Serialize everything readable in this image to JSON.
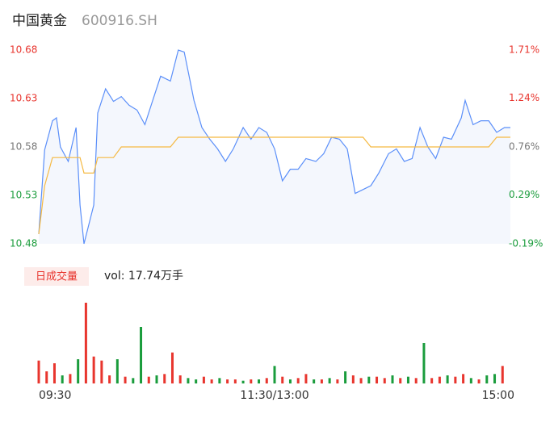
{
  "chart_data": [
    {
      "type": "line",
      "title": "中国黄金",
      "subtitle": "600916.SH",
      "x": [
        0,
        3,
        7,
        9,
        11,
        15,
        19,
        21,
        23,
        28,
        30,
        34,
        38,
        42,
        46,
        50,
        54,
        58,
        62,
        67,
        71,
        74,
        77,
        79,
        83,
        87,
        91,
        95,
        99,
        104,
        108,
        112,
        116,
        120,
        124,
        128,
        132,
        136,
        141,
        145,
        149,
        153,
        157,
        161,
        165,
        169,
        173,
        178,
        182,
        186,
        190,
        194,
        198,
        202,
        206,
        210,
        215,
        217,
        221,
        225,
        229,
        233,
        237,
        240
      ],
      "xlim": [
        0,
        240
      ],
      "series": [
        {
          "name": "price",
          "color": "#5b8ff9",
          "values": [
            10.49,
            10.577,
            10.607,
            10.61,
            10.58,
            10.565,
            10.6,
            10.52,
            10.48,
            10.52,
            10.615,
            10.64,
            10.627,
            10.632,
            10.623,
            10.618,
            10.603,
            10.628,
            10.653,
            10.648,
            10.68,
            10.678,
            10.648,
            10.628,
            10.6,
            10.588,
            10.578,
            10.565,
            10.578,
            10.6,
            10.588,
            10.6,
            10.595,
            10.578,
            10.545,
            10.557,
            10.557,
            10.568,
            10.565,
            10.573,
            10.59,
            10.588,
            10.578,
            10.532,
            10.536,
            10.54,
            10.553,
            10.573,
            10.578,
            10.565,
            10.568,
            10.6,
            10.58,
            10.568,
            10.59,
            10.588,
            10.61,
            10.628,
            10.603,
            10.607,
            10.607,
            10.595,
            10.6,
            10.6
          ]
        },
        {
          "name": "average",
          "color": "#f5b942",
          "values": [
            10.49,
            10.54,
            10.569,
            10.569,
            10.569,
            10.569,
            10.569,
            10.569,
            10.553,
            10.553,
            10.569,
            10.569,
            10.569,
            10.58,
            10.58,
            10.58,
            10.58,
            10.58,
            10.58,
            10.58,
            10.59,
            10.59,
            10.59,
            10.59,
            10.59,
            10.59,
            10.59,
            10.59,
            10.59,
            10.59,
            10.59,
            10.59,
            10.59,
            10.59,
            10.59,
            10.59,
            10.59,
            10.59,
            10.59,
            10.59,
            10.59,
            10.59,
            10.59,
            10.59,
            10.59,
            10.58,
            10.58,
            10.58,
            10.58,
            10.58,
            10.58,
            10.58,
            10.58,
            10.58,
            10.58,
            10.58,
            10.58,
            10.58,
            10.58,
            10.58,
            10.58,
            10.59,
            10.59,
            10.59
          ]
        }
      ],
      "ylim": [
        10.48,
        10.68
      ],
      "yticks": [
        10.48,
        10.53,
        10.58,
        10.63,
        10.68
      ],
      "y2lim": [
        -0.19,
        1.71
      ],
      "y2ticks": [
        {
          "value": -0.19,
          "label": "-0.19%"
        },
        {
          "value": 0.29,
          "label": "0.29%"
        },
        {
          "value": 0.76,
          "label": "0.76%"
        },
        {
          "value": 1.24,
          "label": "1.24%"
        },
        {
          "value": 1.71,
          "label": "1.71%"
        }
      ],
      "tick_colors": [
        "#1a9c3c",
        "#1a9c3c",
        "#777777",
        "#e8352e",
        "#e8352e"
      ]
    },
    {
      "type": "bar",
      "label": "日成交量",
      "summary": "vol: 17.74万手",
      "x": [
        0,
        4,
        8,
        12,
        16,
        20,
        24,
        28,
        32,
        36,
        40,
        44,
        48,
        52,
        56,
        60,
        64,
        68,
        72,
        76,
        80,
        84,
        88,
        92,
        96,
        100,
        104,
        108,
        112,
        116,
        120,
        124,
        128,
        132,
        136,
        140,
        144,
        148,
        152,
        156,
        160,
        164,
        168,
        172,
        176,
        180,
        184,
        188,
        192,
        196,
        200,
        204,
        208,
        212,
        216,
        220,
        224,
        228,
        232,
        236
      ],
      "xlim": [
        0,
        240
      ],
      "values": [
        1700,
        900,
        1500,
        600,
        700,
        1800,
        6000,
        2000,
        1700,
        600,
        1800,
        500,
        400,
        4200,
        500,
        600,
        700,
        2300,
        600,
        400,
        300,
        500,
        300,
        400,
        300,
        300,
        200,
        300,
        300,
        400,
        1300,
        500,
        300,
        400,
        700,
        300,
        300,
        400,
        300,
        900,
        600,
        400,
        500,
        500,
        400,
        600,
        400,
        500,
        400,
        3000,
        400,
        500,
        600,
        500,
        700,
        400,
        300,
        600,
        700,
        1300
      ],
      "colors": [
        "#e8352e",
        "#e8352e",
        "#e8352e",
        "#1a9c3c",
        "#e8352e",
        "#1a9c3c",
        "#e8352e",
        "#e8352e",
        "#e8352e",
        "#e8352e",
        "#1a9c3c",
        "#e8352e",
        "#1a9c3c",
        "#1a9c3c",
        "#e8352e",
        "#1a9c3c",
        "#e8352e",
        "#e8352e",
        "#e8352e",
        "#1a9c3c",
        "#1a9c3c",
        "#e8352e",
        "#e8352e",
        "#1a9c3c",
        "#e8352e",
        "#e8352e",
        "#1a9c3c",
        "#e8352e",
        "#1a9c3c",
        "#e8352e",
        "#1a9c3c",
        "#e8352e",
        "#1a9c3c",
        "#e8352e",
        "#e8352e",
        "#1a9c3c",
        "#e8352e",
        "#1a9c3c",
        "#e8352e",
        "#1a9c3c",
        "#e8352e",
        "#e8352e",
        "#1a9c3c",
        "#e8352e",
        "#e8352e",
        "#1a9c3c",
        "#e8352e",
        "#1a9c3c",
        "#e8352e",
        "#1a9c3c",
        "#e8352e",
        "#e8352e",
        "#1a9c3c",
        "#e8352e",
        "#e8352e",
        "#1a9c3c",
        "#e8352e",
        "#1a9c3c",
        "#1a9c3c",
        "#e8352e"
      ],
      "ylim": [
        0,
        6000
      ],
      "xticks": [
        {
          "value": 0,
          "label": "09:30"
        },
        {
          "value": 120,
          "label": "11:30/13:00"
        },
        {
          "value": 240,
          "label": "15:00"
        }
      ]
    }
  ]
}
